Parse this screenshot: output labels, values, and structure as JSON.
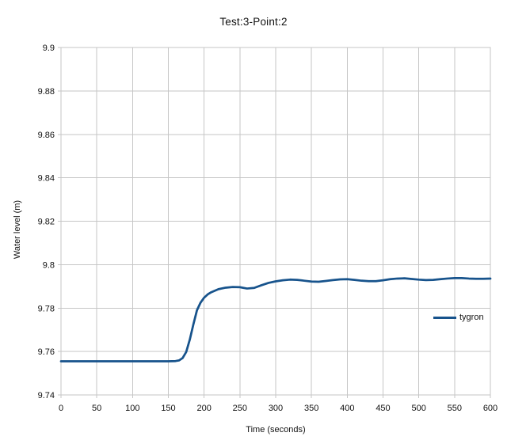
{
  "chart_data": {
    "type": "line",
    "title": "Test:3-Point:2",
    "xlabel": "Time (seconds)",
    "ylabel": "Water level (m)",
    "xlim": [
      0,
      600
    ],
    "ylim": [
      9.74,
      9.9
    ],
    "x_ticks": [
      0,
      50,
      100,
      150,
      200,
      250,
      300,
      350,
      400,
      450,
      500,
      550,
      600
    ],
    "y_ticks": [
      9.74,
      9.76,
      9.78,
      9.8,
      9.82,
      9.84,
      9.86,
      9.88,
      9.9
    ],
    "grid": true,
    "legend": {
      "label": "tygron",
      "position": "inside-right"
    },
    "colors": {
      "series": "#17538C",
      "grid": "#C6C6C6",
      "text": "#111111",
      "background": "#FFFFFF"
    },
    "series": [
      {
        "name": "tygron",
        "color": "#17538C",
        "points": [
          [
            0,
            9.7555
          ],
          [
            10,
            9.7555
          ],
          [
            20,
            9.7555
          ],
          [
            30,
            9.7555
          ],
          [
            40,
            9.7555
          ],
          [
            50,
            9.7555
          ],
          [
            60,
            9.7555
          ],
          [
            70,
            9.7555
          ],
          [
            80,
            9.7555
          ],
          [
            90,
            9.7555
          ],
          [
            100,
            9.7555
          ],
          [
            110,
            9.7555
          ],
          [
            120,
            9.7555
          ],
          [
            130,
            9.7555
          ],
          [
            140,
            9.7555
          ],
          [
            150,
            9.7555
          ],
          [
            160,
            9.7556
          ],
          [
            165,
            9.7559
          ],
          [
            170,
            9.757
          ],
          [
            175,
            9.7598
          ],
          [
            180,
            9.7655
          ],
          [
            185,
            9.7725
          ],
          [
            190,
            9.779
          ],
          [
            195,
            9.7825
          ],
          [
            200,
            9.7848
          ],
          [
            205,
            9.7863
          ],
          [
            210,
            9.7873
          ],
          [
            220,
            9.7887
          ],
          [
            230,
            9.7894
          ],
          [
            240,
            9.7897
          ],
          [
            250,
            9.7896
          ],
          [
            260,
            9.789
          ],
          [
            270,
            9.7893
          ],
          [
            280,
            9.7905
          ],
          [
            290,
            9.7916
          ],
          [
            300,
            9.7923
          ],
          [
            310,
            9.7928
          ],
          [
            320,
            9.7931
          ],
          [
            330,
            9.793
          ],
          [
            340,
            9.7926
          ],
          [
            350,
            9.7922
          ],
          [
            360,
            9.7921
          ],
          [
            370,
            9.7925
          ],
          [
            380,
            9.7929
          ],
          [
            390,
            9.7932
          ],
          [
            400,
            9.7933
          ],
          [
            410,
            9.793
          ],
          [
            420,
            9.7926
          ],
          [
            430,
            9.7924
          ],
          [
            440,
            9.7924
          ],
          [
            450,
            9.7928
          ],
          [
            460,
            9.7933
          ],
          [
            470,
            9.7936
          ],
          [
            480,
            9.7937
          ],
          [
            490,
            9.7934
          ],
          [
            500,
            9.7931
          ],
          [
            510,
            9.7929
          ],
          [
            520,
            9.793
          ],
          [
            530,
            9.7933
          ],
          [
            540,
            9.7936
          ],
          [
            550,
            9.7938
          ],
          [
            560,
            9.7938
          ],
          [
            570,
            9.7936
          ],
          [
            580,
            9.7935
          ],
          [
            590,
            9.7935
          ],
          [
            600,
            9.7936
          ]
        ]
      }
    ]
  }
}
